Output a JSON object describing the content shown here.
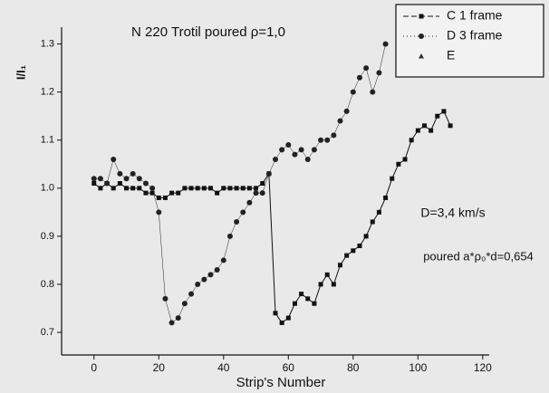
{
  "chart_data": {
    "type": "scatter",
    "title": "N 220 Trotil poured ρ=1,0",
    "x_label": "Strip's Number",
    "y_label": "I/I₁",
    "annotations": [
      "D=3,4 km/s",
      "poured a*ρ₀*d=0,654"
    ],
    "xlim": [
      -10,
      122
    ],
    "ylim": [
      0.653,
      1.335
    ],
    "xticks": [
      0,
      20,
      40,
      60,
      80,
      100,
      120
    ],
    "yticks": [
      {
        "value": 0.7,
        "label": "0.7"
      },
      {
        "value": 0.8,
        "label": "0.8"
      },
      {
        "value": 0.9,
        "label": "0.9"
      },
      {
        "value": 1.0,
        "label": "1.0"
      },
      {
        "value": 1.1,
        "label": "1.1"
      },
      {
        "value": 1.2,
        "label": "1.2"
      },
      {
        "value": 1.3,
        "label": "1.3"
      }
    ],
    "legend": "top-right",
    "series": [
      {
        "name": "C 1 frame",
        "color": "#111111",
        "marker": "square",
        "line": true,
        "x": [
          0,
          2,
          4,
          6,
          8,
          10,
          12,
          14,
          16,
          18,
          20,
          22,
          24,
          26,
          28,
          30,
          32,
          34,
          36,
          38,
          40,
          42,
          44,
          46,
          48,
          50,
          52,
          54,
          56,
          58,
          60,
          62,
          64,
          66,
          68,
          70,
          72,
          74,
          76,
          78,
          80,
          82,
          84,
          86,
          88,
          90,
          92,
          94,
          96,
          98,
          100,
          102,
          104,
          106,
          108,
          110
        ],
        "values": [
          1.01,
          1.0,
          1.01,
          1.0,
          1.01,
          1.0,
          1.0,
          1.0,
          0.99,
          0.99,
          0.98,
          0.98,
          0.99,
          0.99,
          1.0,
          1.0,
          1.0,
          1.0,
          1.0,
          0.99,
          1.0,
          1.0,
          1.0,
          1.0,
          1.0,
          1.0,
          1.01,
          1.03,
          0.74,
          0.72,
          0.73,
          0.76,
          0.78,
          0.77,
          0.76,
          0.8,
          0.82,
          0.8,
          0.84,
          0.86,
          0.87,
          0.88,
          0.9,
          0.93,
          0.95,
          0.98,
          1.02,
          1.05,
          1.06,
          1.1,
          1.12,
          1.13,
          1.12,
          1.15,
          1.16,
          1.13
        ]
      },
      {
        "name": "D 3 frame",
        "color": "#222222",
        "marker": "circle",
        "line": true,
        "x": [
          0,
          2,
          4,
          6,
          8,
          10,
          12,
          14,
          16,
          18,
          20,
          22,
          24,
          26,
          28,
          30,
          32,
          34,
          36,
          38,
          40,
          42,
          44,
          46,
          48,
          50,
          52,
          54,
          56,
          58,
          60,
          62,
          64,
          66,
          68,
          70,
          72,
          74,
          76,
          78,
          80,
          82,
          84,
          86,
          88,
          90
        ],
        "values": [
          1.02,
          1.02,
          1.01,
          1.06,
          1.03,
          1.02,
          1.03,
          1.02,
          1.01,
          1.0,
          0.95,
          0.77,
          0.72,
          0.73,
          0.76,
          0.78,
          0.8,
          0.81,
          0.82,
          0.83,
          0.85,
          0.9,
          0.93,
          0.95,
          0.97,
          0.99,
          0.99,
          1.03,
          1.06,
          1.08,
          1.09,
          1.07,
          1.08,
          1.06,
          1.08,
          1.1,
          1.1,
          1.11,
          1.14,
          1.16,
          1.2,
          1.23,
          1.25,
          1.2,
          1.24,
          1.3
        ]
      },
      {
        "name": "E",
        "color": "#333333",
        "marker": "triangle",
        "line": false,
        "x": [],
        "values": []
      }
    ]
  }
}
